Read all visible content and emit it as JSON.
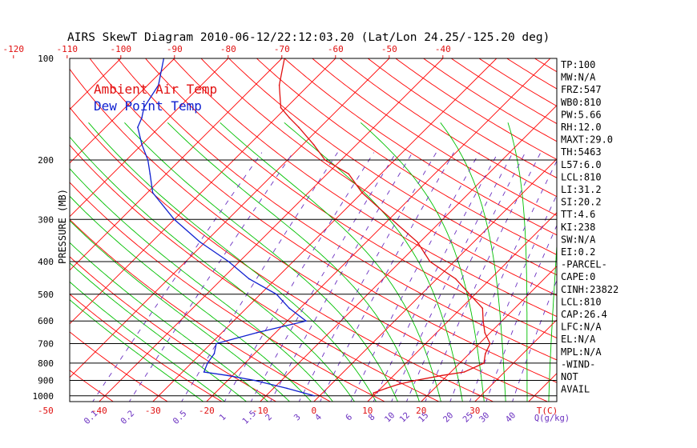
{
  "chart_data": {
    "type": "line",
    "title": "AIRS SkewT Diagram 2010-06-12/22:12:03.20 (Lat/Lon 24.25/-125.20 deg)",
    "ylabel": "PRESSURE (MB)",
    "y_scale": "log",
    "ylim": [
      1040,
      100
    ],
    "pressure_labels": [
      "100",
      "200",
      "300",
      "400",
      "500",
      "600",
      "700",
      "800",
      "900",
      "1000"
    ],
    "pressure_values": [
      100,
      200,
      300,
      400,
      500,
      600,
      700,
      800,
      900,
      1000
    ],
    "top_temp_labels": [
      "-120",
      "-110",
      "-100",
      "-90",
      "-80",
      "-70",
      "-60",
      "-50",
      "-40"
    ],
    "top_temp_values": [
      -120,
      -110,
      -100,
      -90,
      -80,
      -70,
      -60,
      -50,
      -40
    ],
    "bottom_temp_labels": [
      "-50",
      "-40",
      "-30",
      "-20",
      "-10",
      "0",
      "10",
      "20",
      "30"
    ],
    "bottom_temp_values": [
      -50,
      -40,
      -30,
      -20,
      -10,
      0,
      10,
      20,
      30
    ],
    "bottom_temp_unit": "T(C)",
    "mixing_ratio_labels": [
      "0.1",
      "0.2",
      "0.5",
      "1",
      "1.5",
      "2",
      "3",
      "4",
      "6",
      "8",
      "10",
      "12",
      "15",
      "20",
      "25",
      "30",
      "40"
    ],
    "mixing_ratio_values": [
      0.1,
      0.2,
      0.5,
      1,
      1.5,
      2,
      3,
      4,
      6,
      8,
      10,
      12,
      15,
      20,
      25,
      30,
      40
    ],
    "mixing_ratio_unit": "Q(g/kg)",
    "series": [
      {
        "name": "Ambient Air Temp",
        "color": "#e01010",
        "pressure": [
          1000,
          980,
          950,
          925,
          900,
          870,
          850,
          800,
          750,
          700,
          650,
          600,
          550,
          500,
          450,
          400,
          350,
          300,
          250,
          220,
          200,
          180,
          160,
          150,
          140,
          120,
          100
        ],
        "temperature": [
          10,
          9.5,
          11,
          12.5,
          15,
          19,
          22.5,
          24.5,
          23,
          22,
          19,
          16.5,
          14,
          9,
          3.5,
          -4.5,
          -10.5,
          -19.5,
          -30,
          -36,
          -43,
          -48,
          -54,
          -57.5,
          -61,
          -65.5,
          -69.5
        ]
      },
      {
        "name": "Dew Point Temp",
        "color": "#1020d0",
        "pressure": [
          1000,
          950,
          900,
          870,
          850,
          800,
          750,
          700,
          650,
          600,
          550,
          500,
          450,
          400,
          350,
          300,
          250,
          220,
          200,
          180,
          160,
          150,
          140,
          120,
          100
        ],
        "temperature": [
          -1,
          -7.5,
          -15,
          -21,
          -26,
          -27,
          -27.5,
          -29,
          -23.5,
          -16.5,
          -22,
          -27,
          -35,
          -42,
          -51,
          -60,
          -69,
          -73,
          -76,
          -80,
          -84,
          -85,
          -86.5,
          -88,
          -92
        ]
      }
    ],
    "legend": [
      "Ambient Air Temp",
      "Dew Point Temp"
    ],
    "legend_position": "top-left",
    "isobar_grid": true
  },
  "stats": [
    "TP:100",
    "MW:N/A",
    "FRZ:547",
    "WB0:810",
    "PW:5.66",
    "RH:12.0",
    "MAXT:29.0",
    "TH:5463",
    "L57:6.0",
    "LCL:810",
    "LI:31.2",
    "SI:20.2",
    "TT:4.6",
    "KI:238",
    "SW:N/A",
    "EI:0.2",
    "-PARCEL-",
    "CAPE:0",
    "CINH:23822",
    "LCL:810",
    "CAP:26.4",
    "LFC:N/A",
    "EL:N/A",
    "MPL:N/A",
    "-WIND-",
    "NOT",
    "AVAIL"
  ],
  "colors": {
    "dry_adiabat": "#ff0000",
    "moist_adiabat": "#00c000",
    "mixing_ratio": "#6a2fc0",
    "isobar": "#000000"
  }
}
